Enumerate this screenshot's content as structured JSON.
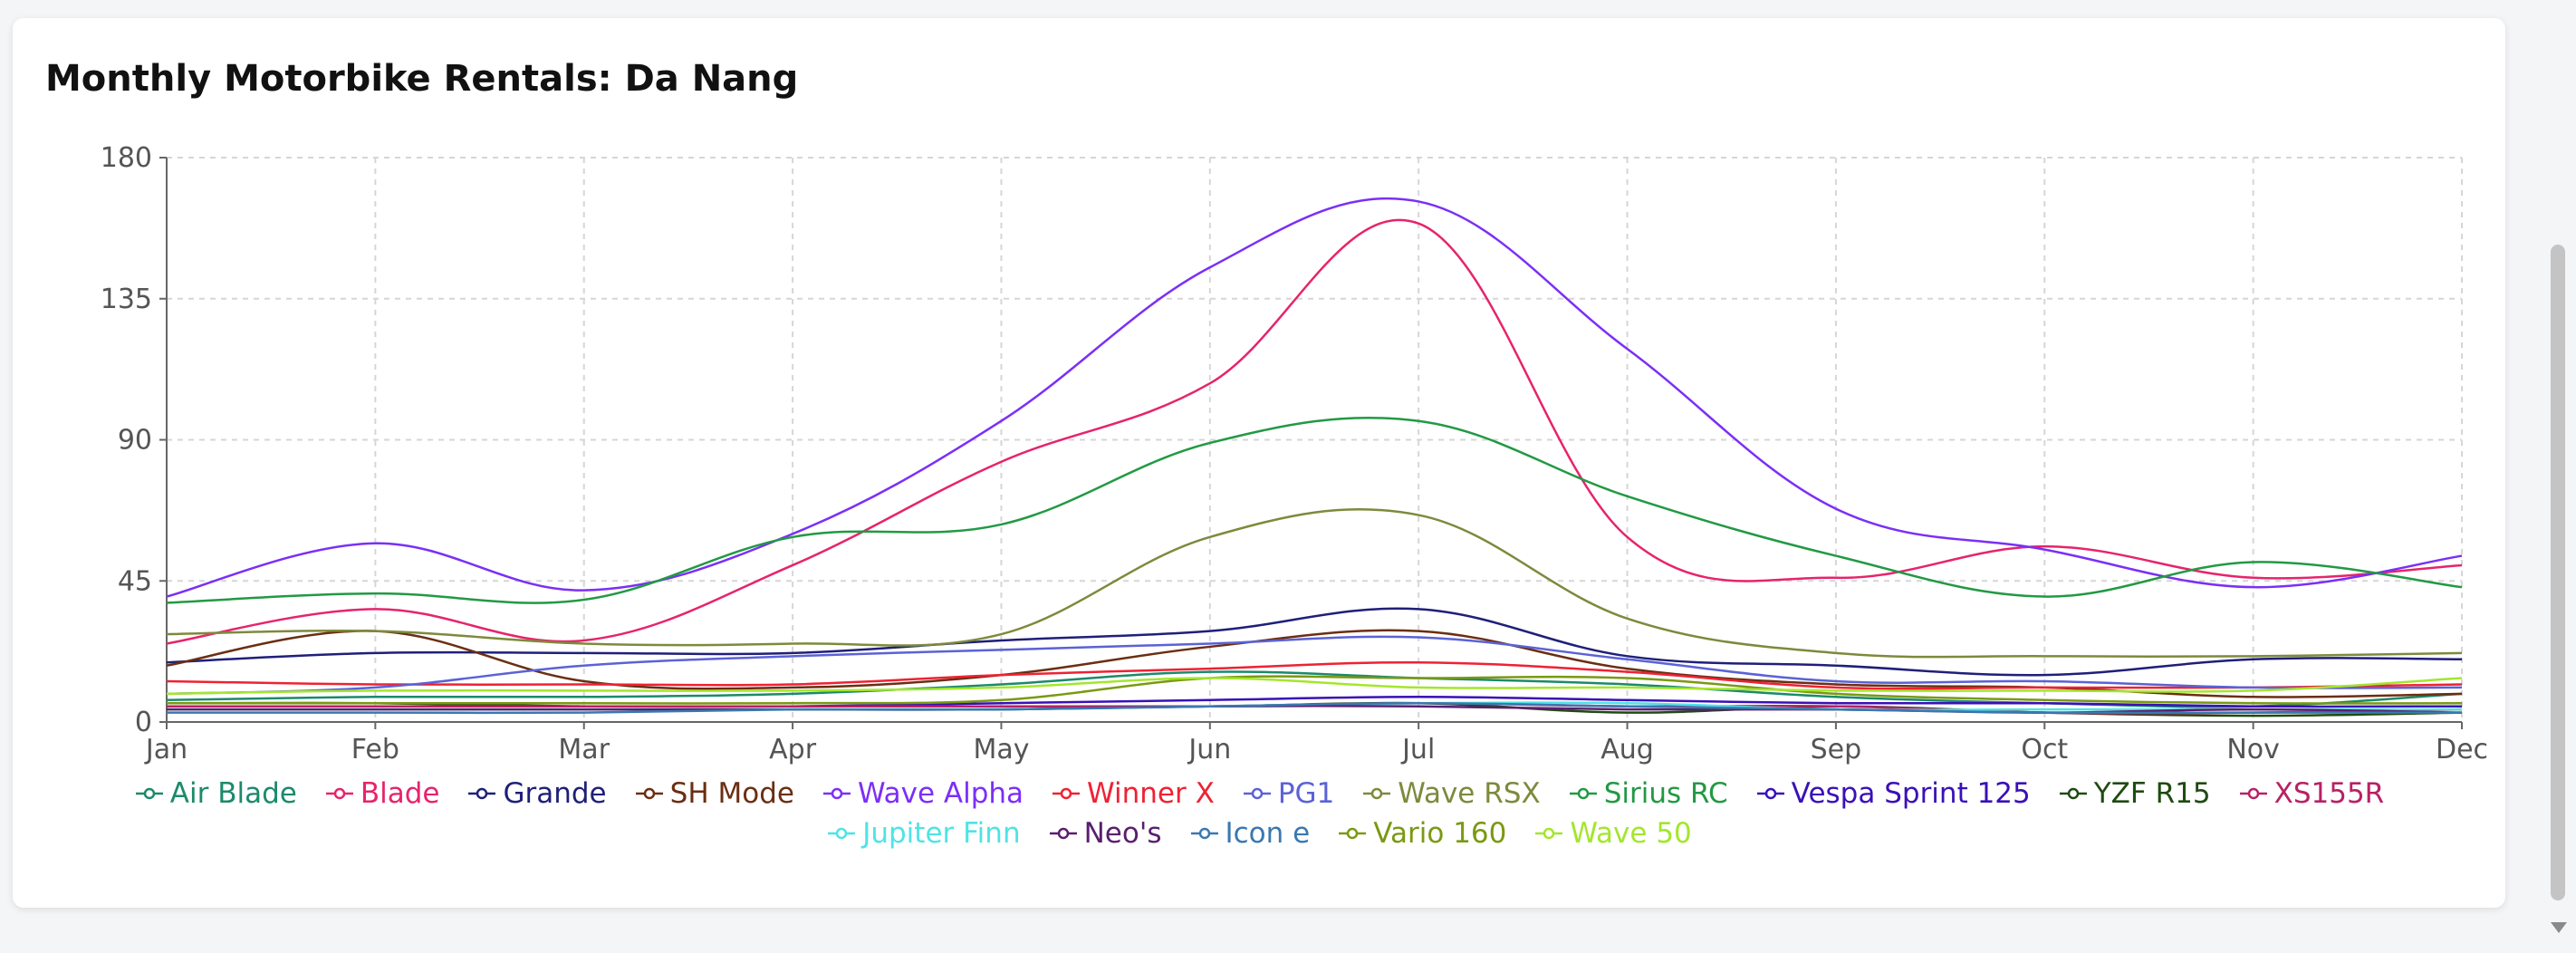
{
  "chart_data": {
    "type": "line",
    "title": "Monthly Motorbike Rentals: Da Nang",
    "xlabel": "",
    "ylabel": "",
    "ylim": [
      0,
      180
    ],
    "yticks": [
      "0",
      "45",
      "90",
      "135",
      "180"
    ],
    "categories": [
      "Jan",
      "Feb",
      "Mar",
      "Apr",
      "May",
      "Jun",
      "Jul",
      "Aug",
      "Sep",
      "Oct",
      "Nov",
      "Dec"
    ],
    "grid": true,
    "legend_position": "bottom",
    "series": [
      {
        "name": "Air Blade",
        "color": "#1b8a6b",
        "values": [
          7,
          8,
          8,
          9,
          12,
          16,
          14,
          12,
          8,
          6,
          5,
          9
        ]
      },
      {
        "name": "Blade",
        "color": "#e6246b",
        "values": [
          25,
          36,
          26,
          50,
          83,
          108,
          159,
          59,
          46,
          56,
          46,
          50
        ]
      },
      {
        "name": "Grande",
        "color": "#1f1f7a",
        "values": [
          19,
          22,
          22,
          22,
          26,
          29,
          36,
          21,
          18,
          15,
          20,
          20
        ]
      },
      {
        "name": "SH Mode",
        "color": "#6b2e12",
        "values": [
          18,
          29,
          13,
          11,
          15,
          24,
          29,
          17,
          12,
          11,
          8,
          9
        ]
      },
      {
        "name": "Wave Alpha",
        "color": "#7b2ff7",
        "values": [
          40,
          57,
          42,
          60,
          96,
          145,
          166,
          119,
          68,
          55,
          43,
          53
        ]
      },
      {
        "name": "Winner X",
        "color": "#ee2233",
        "values": [
          13,
          12,
          12,
          12,
          15,
          17,
          19,
          16,
          11,
          11,
          11,
          12
        ]
      },
      {
        "name": "PG1",
        "color": "#5b62d6",
        "values": [
          9,
          11,
          18,
          21,
          23,
          25,
          27,
          20,
          13,
          13,
          11,
          11
        ]
      },
      {
        "name": "Wave RSX",
        "color": "#7d8a3c",
        "values": [
          28,
          29,
          25,
          25,
          28,
          59,
          66,
          33,
          22,
          21,
          21,
          22
        ]
      },
      {
        "name": "Sirius RC",
        "color": "#229944",
        "values": [
          38,
          41,
          39,
          59,
          63,
          89,
          96,
          72,
          53,
          40,
          51,
          43
        ]
      },
      {
        "name": "Vespa Sprint 125",
        "color": "#3a10b8",
        "values": [
          5,
          5,
          5,
          5,
          6,
          7,
          8,
          7,
          6,
          6,
          5,
          5
        ]
      },
      {
        "name": "YZF R15",
        "color": "#1f4a12",
        "values": [
          6,
          6,
          5,
          5,
          5,
          5,
          6,
          3,
          5,
          3,
          2,
          3
        ]
      },
      {
        "name": "XS155R",
        "color": "#b82165",
        "values": [
          5,
          5,
          5,
          5,
          5,
          5,
          6,
          5,
          5,
          3,
          3,
          4
        ]
      },
      {
        "name": "Jupiter Finn",
        "color": "#4fe3e6",
        "values": [
          4,
          4,
          4,
          4,
          4,
          5,
          6,
          6,
          4,
          4,
          4,
          4
        ]
      },
      {
        "name": "Neo's",
        "color": "#5a1e6e",
        "values": [
          4,
          4,
          4,
          4,
          4,
          5,
          5,
          4,
          4,
          3,
          4,
          3
        ]
      },
      {
        "name": "Icon e",
        "color": "#3a78b0",
        "values": [
          3,
          3,
          3,
          4,
          4,
          5,
          6,
          5,
          4,
          3,
          3,
          3
        ]
      },
      {
        "name": "Vario 160",
        "color": "#7a9912",
        "values": [
          6,
          6,
          6,
          6,
          7,
          14,
          14,
          14,
          9,
          7,
          6,
          6
        ]
      },
      {
        "name": "Wave 50",
        "color": "#a4e62d",
        "values": [
          9,
          10,
          10,
          10,
          11,
          14,
          11,
          11,
          10,
          10,
          10,
          14
        ]
      }
    ]
  }
}
